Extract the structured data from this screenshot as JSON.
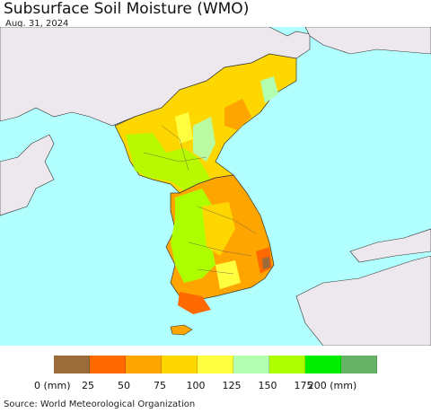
{
  "header": {
    "title": "Subsurface Soil Moisture (WMO)",
    "date": "Aug. 31, 2024"
  },
  "legend": {
    "colors": [
      "#9b6b3a",
      "#ff6a00",
      "#ffa500",
      "#ffd700",
      "#ffff40",
      "#b2ffb2",
      "#adff00",
      "#00ee00",
      "#66b266"
    ],
    "ticks": [
      "0 (mm)",
      "25",
      "50",
      "75",
      "100",
      "125",
      "150",
      "175",
      "200 (mm)"
    ]
  },
  "colors": {
    "sea": "#b2ffff",
    "land_other": "#ede8ed",
    "border": "#333333"
  },
  "footer": {
    "source": "Source: World Meteorological Organization"
  }
}
